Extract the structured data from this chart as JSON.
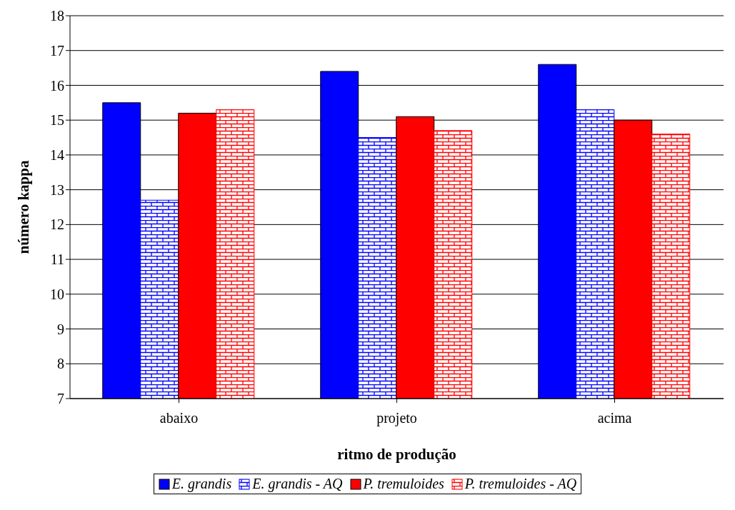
{
  "chart_data": {
    "type": "bar",
    "xlabel": "ritmo de produção",
    "ylabel": "número kappa",
    "categories": [
      "abaixo",
      "projeto",
      "acima"
    ],
    "series": [
      {
        "name": "E. grandis",
        "color": "#0000ff",
        "values": [
          15.5,
          16.4,
          16.6
        ]
      },
      {
        "name": "E. grandis - AQ",
        "color": "#0000ff",
        "values": [
          12.7,
          14.5,
          15.3
        ]
      },
      {
        "name": "P. tremuloides",
        "color": "#ff0000",
        "values": [
          15.2,
          15.1,
          15.0
        ]
      },
      {
        "name": "P. tremuloides - AQ",
        "color": "#ff0000",
        "values": [
          15.3,
          14.7,
          14.6
        ]
      }
    ],
    "ylim": [
      7,
      18
    ],
    "yticks": [
      7,
      8,
      9,
      10,
      11,
      12,
      13,
      14,
      15,
      16,
      17,
      18
    ],
    "grid": "y",
    "legend": "bottom"
  }
}
